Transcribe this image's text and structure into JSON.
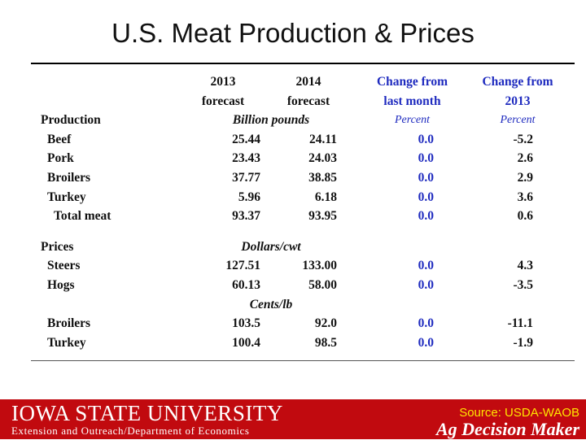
{
  "title": "U.S. Meat Production & Prices",
  "table": {
    "headers": {
      "col2_line1": "2013",
      "col2_line2": "forecast",
      "col3_line1": "2014",
      "col3_line2": "forecast",
      "col4_line1": "Change from",
      "col4_line2": "last month",
      "col5_line1": "Change from",
      "col5_line2": "2013"
    },
    "production": {
      "label": "Production",
      "unit": "Billion pounds",
      "pct_unit_1": "Percent",
      "pct_unit_2": "Percent",
      "rows": [
        {
          "name": "Beef",
          "y2013": "25.44",
          "y2014": "24.11",
          "chg_month": "0.0",
          "chg_2013": "-5.2"
        },
        {
          "name": "Pork",
          "y2013": "23.43",
          "y2014": "24.03",
          "chg_month": "0.0",
          "chg_2013": "2.6"
        },
        {
          "name": "Broilers",
          "y2013": "37.77",
          "y2014": "38.85",
          "chg_month": "0.0",
          "chg_2013": "2.9"
        },
        {
          "name": "Turkey",
          "y2013": "5.96",
          "y2014": "6.18",
          "chg_month": "0.0",
          "chg_2013": "3.6"
        },
        {
          "name": "Total meat",
          "y2013": "93.37",
          "y2014": "93.95",
          "chg_month": "0.0",
          "chg_2013": "0.6"
        }
      ]
    },
    "prices": {
      "label": "Prices",
      "unit_1": "Dollars/cwt",
      "rows_1": [
        {
          "name": "Steers",
          "y2013": "127.51",
          "y2014": "133.00",
          "chg_month": "0.0",
          "chg_2013": "4.3"
        },
        {
          "name": "Hogs",
          "y2013": "60.13",
          "y2014": "58.00",
          "chg_month": "0.0",
          "chg_2013": "-3.5"
        }
      ],
      "unit_2": "Cents/lb",
      "rows_2": [
        {
          "name": "Broilers",
          "y2013": "103.5",
          "y2014": "92.0",
          "chg_month": "0.0",
          "chg_2013": "-11.1"
        },
        {
          "name": "Turkey",
          "y2013": "100.4",
          "y2014": "98.5",
          "chg_month": "0.0",
          "chg_2013": "-1.9"
        }
      ]
    }
  },
  "footer": {
    "university": "Iowa State University",
    "department": "Extension and Outreach/Department of Economics",
    "source": "Source: USDA-WAOB",
    "brand": "Ag Decision Maker"
  }
}
